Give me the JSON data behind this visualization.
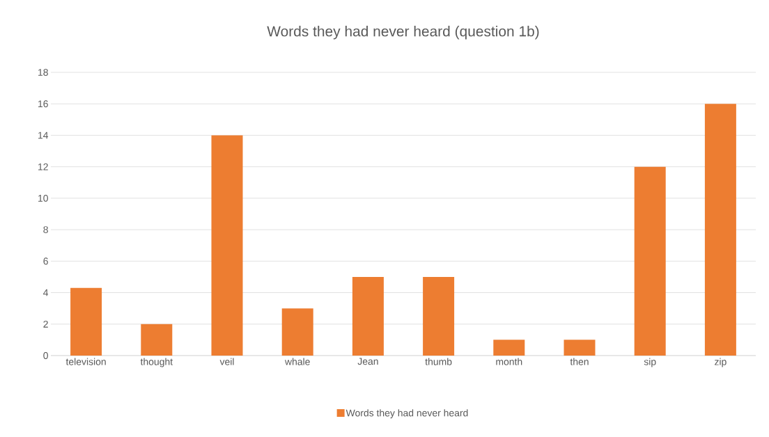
{
  "chart_data": {
    "type": "bar",
    "title": "Words they had never heard (question 1b)",
    "categories": [
      "television",
      "thought",
      "veil",
      "whale",
      "Jean",
      "thumb",
      "month",
      "then",
      "sip",
      "zip"
    ],
    "series": [
      {
        "name": "Words they had never heard",
        "color": "#ed7d31",
        "values": [
          4.3,
          2,
          14,
          3,
          5,
          5,
          1,
          1,
          12,
          16
        ]
      }
    ],
    "ylim": [
      0,
      18
    ],
    "yticks": [
      0,
      2,
      4,
      6,
      8,
      10,
      12,
      14,
      16,
      18
    ],
    "grid": "y",
    "legend": "bottom"
  }
}
